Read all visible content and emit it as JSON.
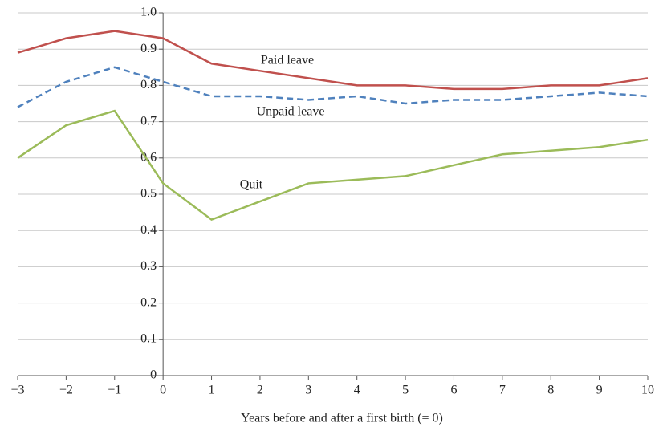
{
  "chart_data": {
    "type": "line",
    "x_label": "Years before and after a first birth (= 0)",
    "x": [
      -3,
      -2,
      -1,
      0,
      1,
      2,
      3,
      4,
      5,
      6,
      7,
      8,
      9,
      10
    ],
    "series": [
      {
        "name": "Paid leave",
        "color": "#c0504d",
        "dash": false,
        "values": [
          0.89,
          0.93,
          0.95,
          0.93,
          0.86,
          0.84,
          0.82,
          0.8,
          0.8,
          0.79,
          0.79,
          0.8,
          0.8,
          0.82
        ]
      },
      {
        "name": "Unpaid leave",
        "color": "#4f81bd",
        "dash": true,
        "values": [
          0.74,
          0.81,
          0.85,
          0.81,
          0.77,
          0.77,
          0.76,
          0.77,
          0.75,
          0.76,
          0.76,
          0.77,
          0.78,
          0.77
        ]
      },
      {
        "name": "Quit",
        "color": "#9bbb59",
        "dash": false,
        "values": [
          0.6,
          0.69,
          0.73,
          0.53,
          0.43,
          0.48,
          0.53,
          0.54,
          0.55,
          0.58,
          0.61,
          0.62,
          0.63,
          0.65
        ]
      }
    ],
    "xlim": [
      -3,
      10
    ],
    "xticks": [
      {
        "value": -3,
        "label": "−3"
      },
      {
        "value": -2,
        "label": "−2"
      },
      {
        "value": -1,
        "label": "−1"
      },
      0,
      1,
      2,
      3,
      4,
      5,
      6,
      7,
      8,
      9,
      10
    ],
    "ylim": [
      0,
      1
    ],
    "yticks": [
      0,
      0.1,
      0.2,
      0.3,
      0.4,
      0.5,
      0.6,
      0.7,
      0.8,
      0.9,
      {
        "value": 1,
        "label": "1.0"
      }
    ],
    "grid": true
  }
}
